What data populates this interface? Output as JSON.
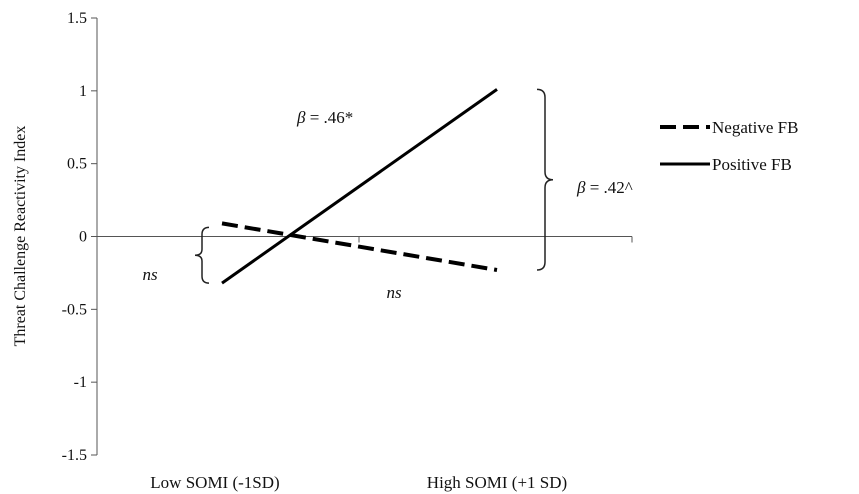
{
  "chart_data": {
    "type": "line",
    "title": "",
    "xlabel": "",
    "ylabel": "Threat Challenge Reactivity Index",
    "categories": [
      "Low SOMI (-1SD)",
      "High SOMI (+1 SD)"
    ],
    "ylim": [
      -1.5,
      1.5
    ],
    "yticks": [
      "1.5",
      "1",
      "0.5",
      "0",
      "-0.5",
      "-1",
      "-1.5"
    ],
    "ytick_values": [
      1.5,
      1,
      0.5,
      0,
      -0.5,
      -1,
      -1.5
    ],
    "series": [
      {
        "name": "Negative FB",
        "values": [
          0.09,
          -0.23
        ],
        "style": "dashed",
        "color": "#000000"
      },
      {
        "name": "Positive FB",
        "values": [
          -0.32,
          1.01
        ],
        "style": "solid",
        "color": "#000000"
      }
    ],
    "legend": {
      "placement": "right"
    },
    "grid": false,
    "annotations": {
      "positive_slope": {
        "symbol": "β",
        "text": " = .46*"
      },
      "difference_high": {
        "symbol": "β",
        "text": " = .42^"
      },
      "difference_low": "ns",
      "negative_slope": "ns"
    }
  }
}
